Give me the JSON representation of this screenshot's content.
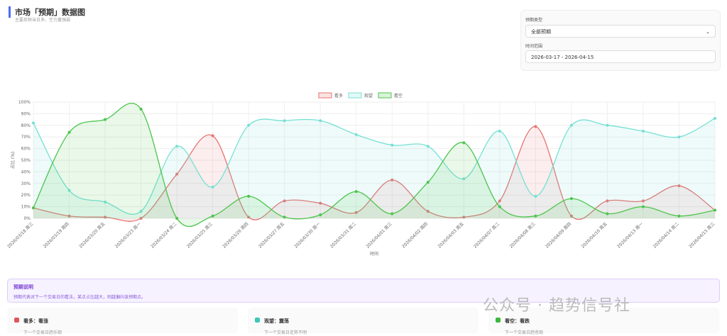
{
  "header": {
    "title": "市场「预期」数据图",
    "subtitle": "主要反映当日多、空力量强弱"
  },
  "filters": {
    "type_label": "预期类型",
    "type_value": "全部预期",
    "range_label": "时间范围",
    "range_value": "2026-03-17 - 2026-04-15"
  },
  "chart_data": {
    "type": "line",
    "x_label": "时间",
    "y_label": "占比 (%)",
    "categories": [
      "2026/03/18 周三",
      "2026/03/19 周四",
      "2026/03/20 周五",
      "2026/03/23 周一",
      "2026/03/24 周二",
      "2026/03/25 周三",
      "2026/03/26 周四",
      "2026/03/27 周五",
      "2026/03/30 周一",
      "2026/03/31 周二",
      "2026/04/01 周三",
      "2026/04/02 周四",
      "2026/04/03 周五",
      "2026/04/07 周二",
      "2026/04/08 周三",
      "2026/04/09 周四",
      "2026/04/10 周五",
      "2026/04/13 周一",
      "2026/04/14 周二",
      "2026/04/15 周三"
    ],
    "series": [
      {
        "name": "看多",
        "color": "#e57373",
        "values": [
          9,
          2,
          1,
          0,
          38,
          71,
          1,
          15,
          13,
          5,
          33,
          6,
          1,
          15,
          79,
          2,
          15,
          15,
          28,
          7
        ]
      },
      {
        "name": "观望",
        "color": "#76e0d4",
        "values": [
          82,
          24,
          14,
          6,
          62,
          27,
          80,
          84,
          84,
          72,
          63,
          62,
          34,
          75,
          19,
          80,
          80,
          75,
          70,
          86
        ]
      },
      {
        "name": "看空",
        "color": "#4cc44c",
        "values": [
          9,
          74,
          85,
          94,
          0,
          2,
          19,
          1,
          3,
          23,
          4,
          31,
          65,
          10,
          2,
          17,
          4,
          10,
          2,
          7
        ]
      }
    ],
    "ylim": [
      0,
      100
    ],
    "yticks": [
      {
        "value": 0,
        "label": "0%"
      },
      {
        "value": 10,
        "label": "10%"
      },
      {
        "value": 20,
        "label": "20%"
      },
      {
        "value": 30,
        "label": "30%"
      },
      {
        "value": 40,
        "label": "40%"
      },
      {
        "value": 50,
        "label": "50%"
      },
      {
        "value": 60,
        "label": "60%"
      },
      {
        "value": 70,
        "label": "70%"
      },
      {
        "value": 80,
        "label": "80%"
      },
      {
        "value": 90,
        "label": "90%"
      },
      {
        "value": 100,
        "label": "100%"
      }
    ],
    "grid": true,
    "legend": "top",
    "smooth": true,
    "fill": true
  },
  "notes": {
    "title": "预期说明",
    "text": "预期代表对下一个交易日的看法，某点占比越大，则越偏向该预期点。",
    "cards": [
      {
        "title": "看多：看涨",
        "desc": "下一个交易日趋乐观",
        "color": "#e05555"
      },
      {
        "title": "观望：震荡",
        "desc": "下一个交易日走势不明",
        "color": "#3cc7b8"
      },
      {
        "title": "看空：看跌",
        "desc": "下一个交易日趋悲观",
        "color": "#3bb83b"
      }
    ]
  },
  "watermark": "公众号 · 趋势信号社"
}
